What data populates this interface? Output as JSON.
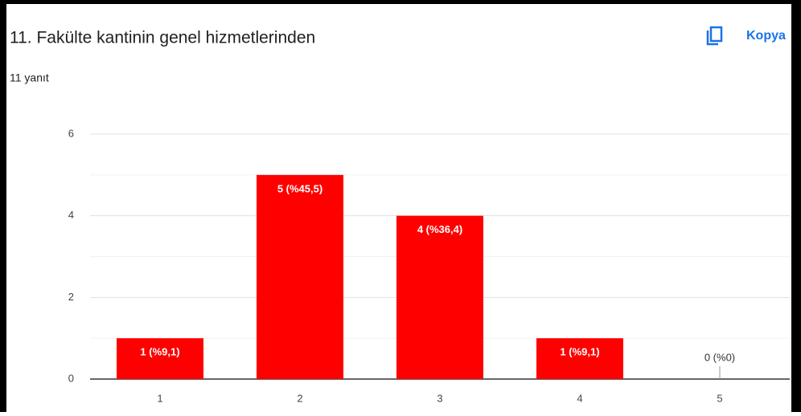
{
  "header": {
    "title": "11. Fakülte kantinin genel hizmetlerinden",
    "subtitle": "11 yanıt",
    "copy_button": "Kopya"
  },
  "chart_data": {
    "type": "bar",
    "categories": [
      "1",
      "2",
      "3",
      "4",
      "5"
    ],
    "values": [
      1,
      5,
      4,
      1,
      0
    ],
    "value_labels": [
      "1 (%9,1)",
      "5 (%45,5)",
      "4 (%36,4)",
      "1 (%9,1)",
      "0 (%0)"
    ],
    "color": "#ff0000",
    "ylim": [
      0,
      6
    ],
    "yticks": [
      0,
      2,
      4,
      6
    ],
    "minor_yticks": [
      1,
      3,
      5
    ],
    "grid": true
  }
}
